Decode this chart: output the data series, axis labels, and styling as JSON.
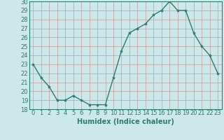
{
  "x": [
    0,
    1,
    2,
    3,
    4,
    5,
    6,
    7,
    8,
    9,
    10,
    11,
    12,
    13,
    14,
    15,
    16,
    17,
    18,
    19,
    20,
    21,
    22,
    23
  ],
  "y": [
    23.0,
    21.5,
    20.5,
    19.0,
    19.0,
    19.5,
    19.0,
    18.5,
    18.5,
    18.5,
    21.5,
    24.5,
    26.5,
    27.0,
    27.5,
    28.5,
    29.0,
    30.0,
    29.0,
    29.0,
    26.5,
    25.0,
    24.0,
    22.0
  ],
  "line_color": "#2e7d6e",
  "marker": "*",
  "marker_size": 3,
  "bg_color": "#cce8e8",
  "grid_color": "#c0a0a0",
  "xlabel": "Humidex (Indice chaleur)",
  "xlim": [
    -0.5,
    23.5
  ],
  "ylim": [
    18,
    30
  ],
  "yticks": [
    18,
    19,
    20,
    21,
    22,
    23,
    24,
    25,
    26,
    27,
    28,
    29,
    30
  ],
  "xticks": [
    0,
    1,
    2,
    3,
    4,
    5,
    6,
    7,
    8,
    9,
    10,
    11,
    12,
    13,
    14,
    15,
    16,
    17,
    18,
    19,
    20,
    21,
    22,
    23
  ],
  "tick_fontsize": 6,
  "xlabel_fontsize": 7
}
